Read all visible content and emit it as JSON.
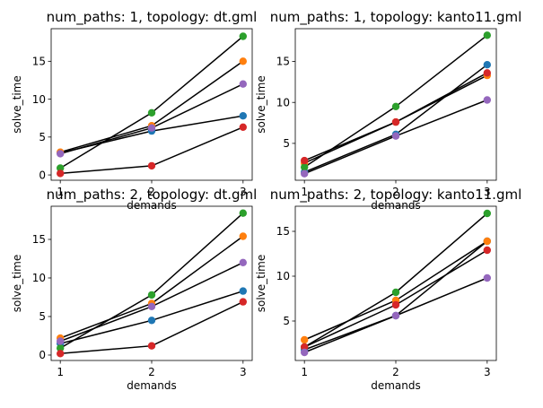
{
  "colors": {
    "line": "#000000",
    "palette": [
      "#1f77b4",
      "#ff7f0e",
      "#2ca02c",
      "#d62728",
      "#9467bd"
    ]
  },
  "chart_data": [
    {
      "type": "scatter",
      "title": "num_paths: 1, topology: dt.gml",
      "xlabel": "demands",
      "ylabel": "solve_time",
      "x": [
        1,
        2,
        3
      ],
      "xticks": [
        "1",
        "2",
        "3"
      ],
      "yticks": [
        0,
        5,
        10,
        15
      ],
      "xlim": [
        0.9,
        3.1
      ],
      "ylim": [
        -0.7,
        19.3
      ],
      "series": [
        {
          "values": [
            2.9,
            5.8,
            7.8
          ]
        },
        {
          "values": [
            3.0,
            6.5,
            15.0
          ]
        },
        {
          "values": [
            0.9,
            8.2,
            18.3
          ]
        },
        {
          "values": [
            0.2,
            1.2,
            6.3
          ]
        },
        {
          "values": [
            2.8,
            6.2,
            12.0
          ]
        }
      ]
    },
    {
      "type": "scatter",
      "title": "num_paths: 1, topology: kanto11.gml",
      "xlabel": "demands",
      "ylabel": "solve_time",
      "x": [
        1,
        2,
        3
      ],
      "xticks": [
        "1",
        "2",
        "3"
      ],
      "yticks": [
        5,
        10,
        15
      ],
      "xlim": [
        0.9,
        3.1
      ],
      "ylim": [
        0.5,
        19.0
      ],
      "series": [
        {
          "values": [
            1.5,
            6.1,
            14.6
          ]
        },
        {
          "values": [
            2.6,
            7.6,
            13.3
          ]
        },
        {
          "values": [
            2.1,
            9.5,
            18.2
          ]
        },
        {
          "values": [
            2.9,
            7.6,
            13.6
          ]
        },
        {
          "values": [
            1.3,
            5.9,
            10.3
          ]
        }
      ]
    },
    {
      "type": "scatter",
      "title": "num_paths: 2, topology: dt.gml",
      "xlabel": "demands",
      "ylabel": "solve_time",
      "x": [
        1,
        2,
        3
      ],
      "xticks": [
        "1",
        "2",
        "3"
      ],
      "yticks": [
        0,
        5,
        10,
        15
      ],
      "xlim": [
        0.9,
        3.1
      ],
      "ylim": [
        -0.7,
        19.3
      ],
      "series": [
        {
          "values": [
            1.5,
            4.5,
            8.3
          ]
        },
        {
          "values": [
            2.2,
            6.7,
            15.4
          ]
        },
        {
          "values": [
            0.9,
            7.8,
            18.4
          ]
        },
        {
          "values": [
            0.2,
            1.2,
            6.9
          ]
        },
        {
          "values": [
            1.8,
            6.3,
            12.0
          ]
        }
      ]
    },
    {
      "type": "scatter",
      "title": "num_paths: 2, topology: kanto11.gml",
      "xlabel": "demands",
      "ylabel": "solve_time",
      "x": [
        1,
        2,
        3
      ],
      "xticks": [
        "1",
        "2",
        "3"
      ],
      "yticks": [
        5,
        10,
        15
      ],
      "xlim": [
        0.9,
        3.1
      ],
      "ylim": [
        0.6,
        17.8
      ],
      "series": [
        {
          "values": [
            1.8,
            5.6,
            13.9
          ]
        },
        {
          "values": [
            2.9,
            7.3,
            13.9
          ]
        },
        {
          "values": [
            2.1,
            8.2,
            17.0
          ]
        },
        {
          "values": [
            2.1,
            6.8,
            12.9
          ]
        },
        {
          "values": [
            1.5,
            5.6,
            9.8
          ]
        }
      ]
    }
  ]
}
